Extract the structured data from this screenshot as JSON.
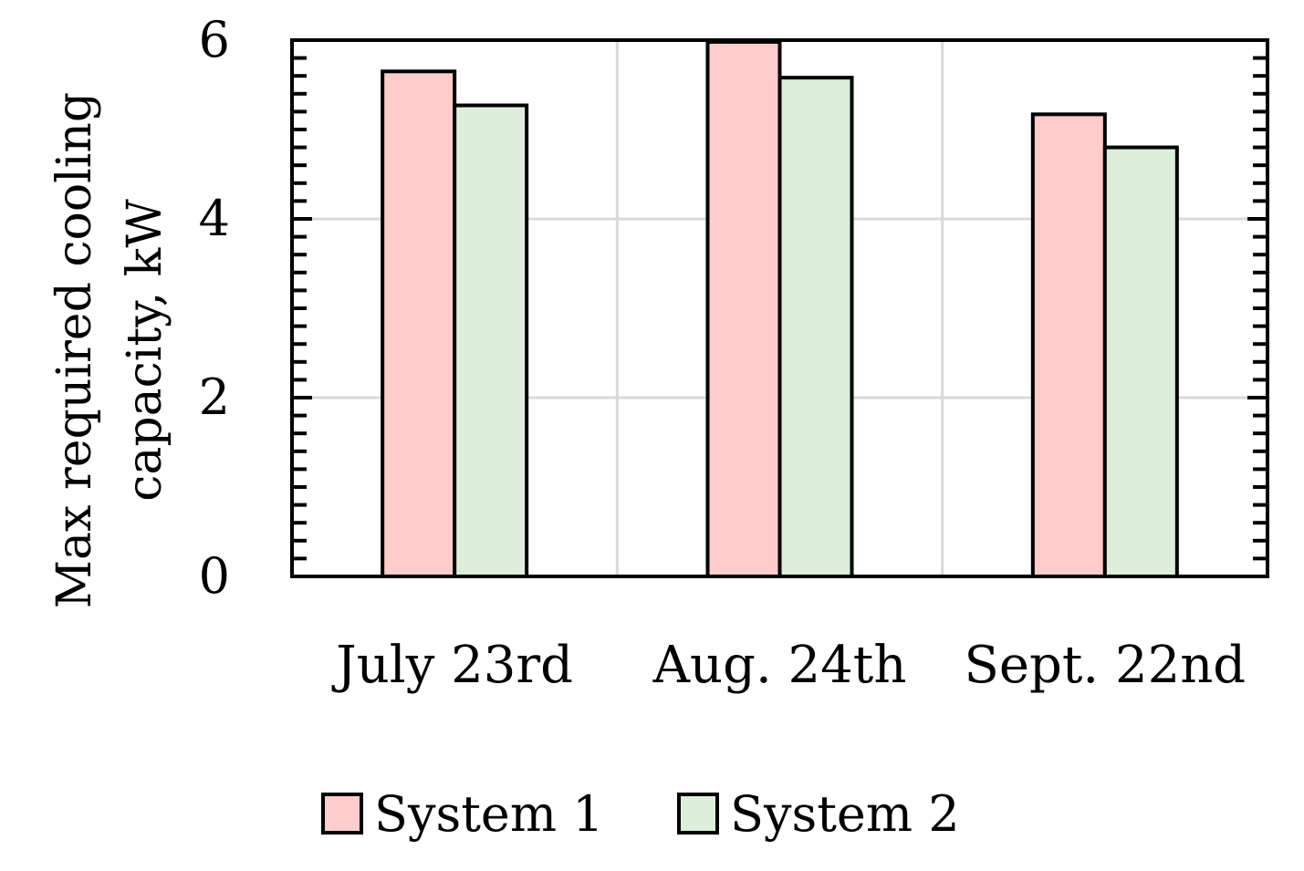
{
  "chart_data": {
    "type": "bar",
    "title": "",
    "xlabel": "",
    "ylabel_lines": [
      "Max required cooling",
      "capacity, kW"
    ],
    "categories": [
      "July 23rd",
      "Aug. 24th",
      "Sept. 22nd"
    ],
    "series": [
      {
        "name": "System 1",
        "values": [
          5.65,
          5.98,
          5.17
        ],
        "color": "#FFCCCC"
      },
      {
        "name": "System 2",
        "values": [
          5.27,
          5.58,
          4.8
        ],
        "color": "#DDEFDB"
      }
    ],
    "ylim": [
      0,
      6
    ],
    "yticks": [
      0,
      2,
      4,
      6
    ],
    "minor_tick_step": 0.2,
    "grid": true,
    "legend_position": "bottom-center",
    "colors": {
      "axis": "#000000",
      "grid": "#D9D9D9",
      "bar_stroke": "#000000"
    }
  }
}
